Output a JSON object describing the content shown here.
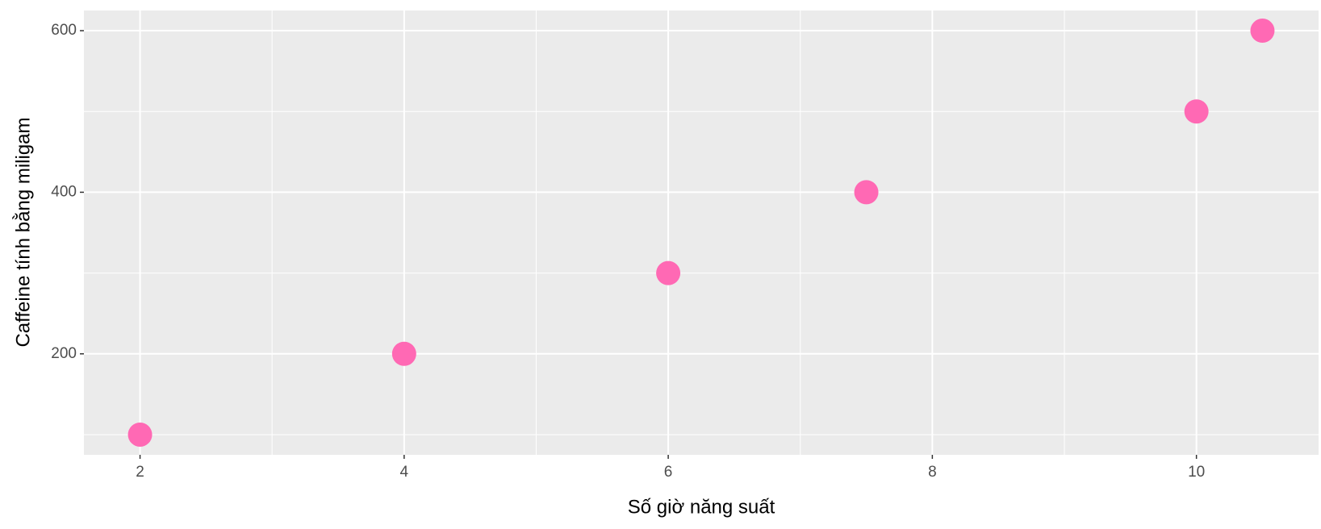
{
  "chart_data": {
    "type": "scatter",
    "x_label": "Số giờ năng suất",
    "y_label": "Caffeine tính bằng miligam",
    "x": [
      2,
      4,
      6,
      7.5,
      10,
      10.5
    ],
    "series": [
      {
        "name": "caffeine",
        "color": "#ff69b4",
        "values": [
          100,
          200,
          300,
          400,
          500,
          600
        ]
      }
    ],
    "xlim": [
      1.575,
      10.925
    ],
    "xticks": [
      2,
      4,
      6,
      8,
      10
    ],
    "xminorticks": [
      3,
      5,
      7,
      9
    ],
    "ylim": [
      75,
      625
    ],
    "yticks": [
      200,
      400,
      600
    ],
    "yminorticks": [
      100,
      300,
      500
    ],
    "grid": true
  }
}
